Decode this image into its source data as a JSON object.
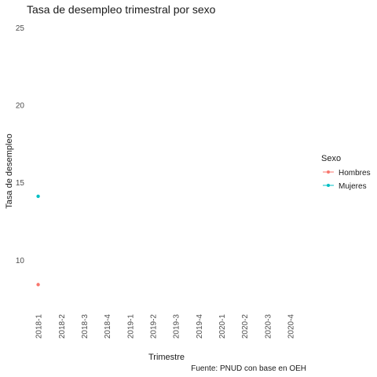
{
  "chart_data": {
    "type": "scatter",
    "title": "Tasa de desempleo trimestral por sexo",
    "xlabel": "Trimestre",
    "ylabel": "Tasa de desempleo",
    "caption": "Fuente: PNUD con base en OEH",
    "categories": [
      "2018-1",
      "2018-2",
      "2018-3",
      "2018-4",
      "2019-1",
      "2019-2",
      "2019-3",
      "2019-4",
      "2020-1",
      "2020-2",
      "2020-3",
      "2020-4"
    ],
    "ylim": [
      7,
      25.5
    ],
    "yticks": [
      10,
      15,
      20,
      25
    ],
    "grid": false,
    "legend": {
      "title": "Sexo",
      "position": "right"
    },
    "series": [
      {
        "name": "Hombres",
        "color": "#F8766D",
        "values": [
          8.4,
          null,
          null,
          null,
          null,
          null,
          null,
          null,
          null,
          null,
          null,
          null
        ]
      },
      {
        "name": "Mujeres",
        "color": "#00BFC4",
        "values": [
          14.1,
          null,
          null,
          null,
          null,
          null,
          null,
          null,
          null,
          null,
          null,
          null
        ]
      }
    ]
  }
}
